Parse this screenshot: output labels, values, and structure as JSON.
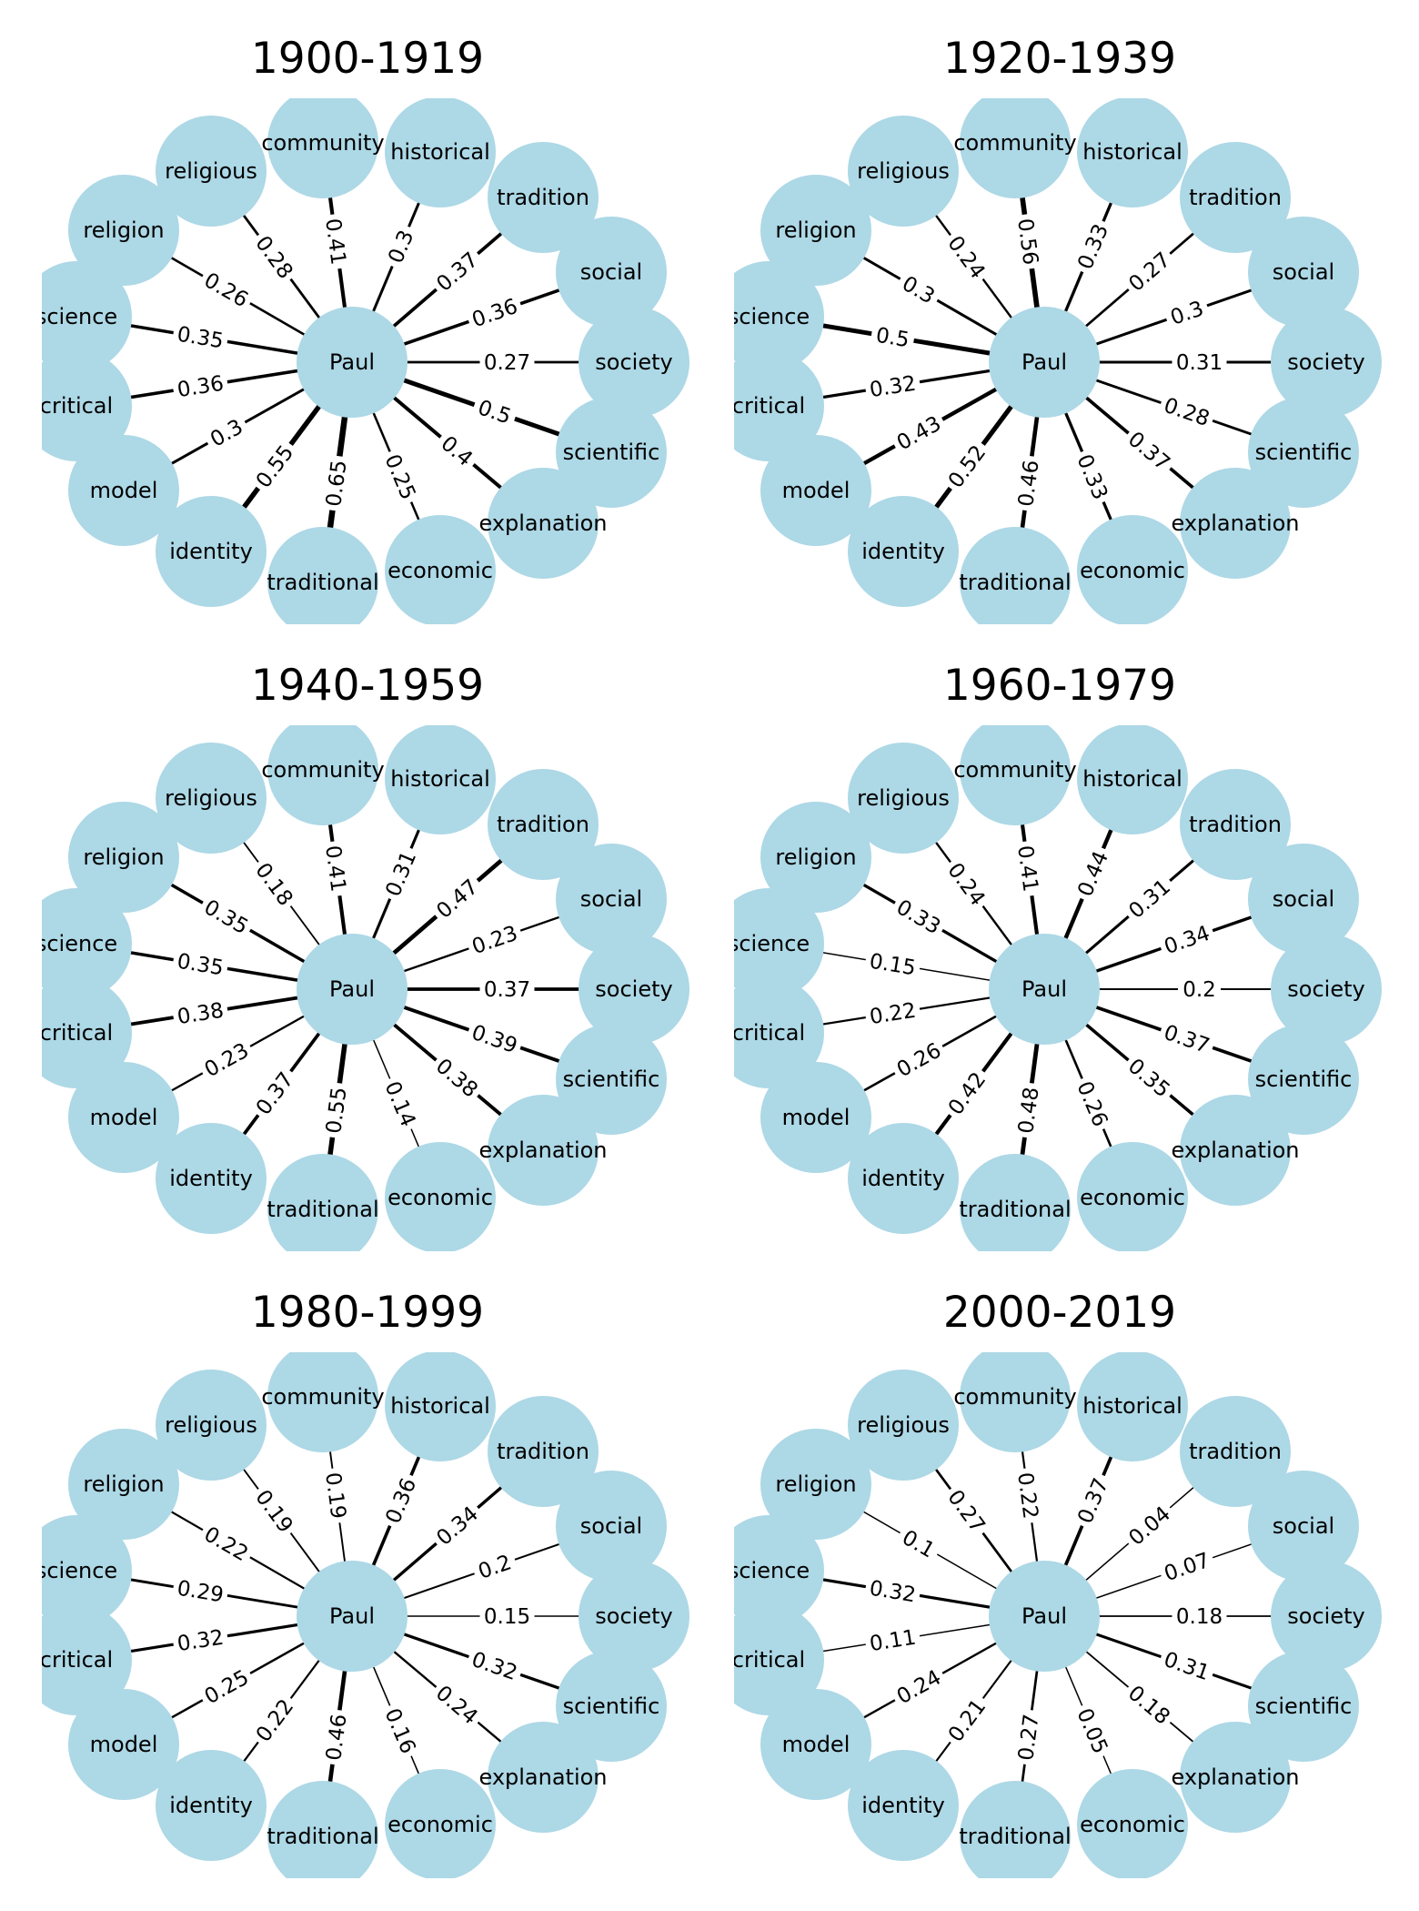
{
  "center_node": "Paul",
  "nodes": [
    "community",
    "historical",
    "tradition",
    "social",
    "society",
    "scientific",
    "explanation",
    "economic",
    "traditional",
    "identity",
    "model",
    "critical",
    "science",
    "religion",
    "religious"
  ],
  "panels": [
    {
      "title": "1900-1919",
      "weights": [
        0.41,
        0.3,
        0.37,
        0.36,
        0.27,
        0.5,
        0.4,
        0.25,
        0.65,
        0.55,
        0.3,
        0.36,
        0.35,
        0.26,
        0.28
      ]
    },
    {
      "title": "1920-1939",
      "weights": [
        0.56,
        0.33,
        0.27,
        0.3,
        0.31,
        0.28,
        0.37,
        0.33,
        0.46,
        0.52,
        0.43,
        0.32,
        0.5,
        0.3,
        0.24
      ]
    },
    {
      "title": "1940-1959",
      "weights": [
        0.41,
        0.31,
        0.47,
        0.23,
        0.37,
        0.39,
        0.38,
        0.14,
        0.55,
        0.37,
        0.23,
        0.38,
        0.35,
        0.35,
        0.18
      ]
    },
    {
      "title": "1960-1979",
      "weights": [
        0.41,
        0.44,
        0.31,
        0.34,
        0.2,
        0.37,
        0.35,
        0.26,
        0.48,
        0.42,
        0.26,
        0.22,
        0.15,
        0.33,
        0.24
      ]
    },
    {
      "title": "1980-1999",
      "weights": [
        0.19,
        0.36,
        0.34,
        0.2,
        0.15,
        0.32,
        0.24,
        0.16,
        0.46,
        0.22,
        0.25,
        0.32,
        0.29,
        0.22,
        0.19
      ]
    },
    {
      "title": "2000-2019",
      "weights": [
        0.22,
        0.37,
        0.04,
        0.07,
        0.18,
        0.31,
        0.18,
        0.05,
        0.27,
        0.21,
        0.24,
        0.11,
        0.32,
        0.1,
        0.27
      ]
    }
  ],
  "colors": {
    "node": "#add8e6",
    "edge": "#000000",
    "text": "#000000"
  }
}
